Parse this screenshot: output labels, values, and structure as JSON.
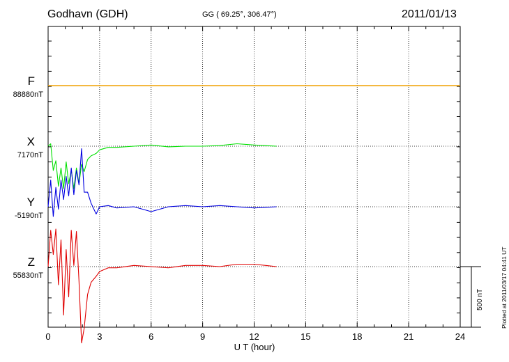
{
  "header": {
    "station": "Godhavn (GDH)",
    "coords": "GG ( 69.25°, 306.47°)",
    "date": "2011/01/13"
  },
  "plotted_note": "Plotted at 2011/03/17 04:41 UT",
  "scale_label": "500 nT",
  "colors": {
    "F": "#f0a000",
    "X": "#00e000",
    "Y": "#0000e0",
    "Z": "#e00000"
  },
  "chart_data": {
    "type": "line",
    "title": "Godhavn (GDH)",
    "xlabel": "U T (hour)",
    "xlim": [
      0,
      24
    ],
    "x_ticks": [
      0,
      3,
      6,
      9,
      12,
      15,
      18,
      21,
      24
    ],
    "x_tick_labels": [
      "0",
      "3",
      "6",
      "9",
      "12",
      "15",
      "18",
      "21",
      "24"
    ],
    "scale_bar_nT": 500,
    "series": [
      {
        "name": "F",
        "base_label": "88880nT",
        "color": "#f0a000",
        "x": [
          0,
          24
        ],
        "y": [
          0,
          0
        ]
      },
      {
        "name": "X",
        "base_label": "7170nT",
        "color": "#00e000",
        "x": [
          0,
          0.15,
          0.3,
          0.45,
          0.6,
          0.75,
          0.9,
          1.05,
          1.2,
          1.35,
          1.5,
          1.65,
          1.8,
          1.95,
          2.1,
          2.3,
          2.5,
          2.8,
          3.0,
          3.5,
          4,
          5,
          6,
          7,
          8,
          9,
          10,
          11,
          12,
          13.3
        ],
        "y": [
          0,
          20,
          -200,
          -120,
          -330,
          -180,
          -350,
          -130,
          -310,
          -200,
          -350,
          -180,
          -310,
          -150,
          -210,
          -110,
          -80,
          -60,
          -30,
          -10,
          -10,
          0,
          10,
          -5,
          0,
          0,
          5,
          20,
          10,
          0
        ]
      },
      {
        "name": "Y",
        "base_label": "-5190nT",
        "color": "#0000e0",
        "x": [
          0,
          0.15,
          0.3,
          0.45,
          0.6,
          0.75,
          0.9,
          1.05,
          1.2,
          1.35,
          1.5,
          1.65,
          1.8,
          1.95,
          2.1,
          2.3,
          2.5,
          2.8,
          3.0,
          3.5,
          4,
          5,
          6,
          7,
          8,
          9,
          10,
          11,
          12,
          13.3
        ],
        "y": [
          0,
          220,
          -80,
          160,
          -20,
          220,
          60,
          250,
          90,
          320,
          100,
          300,
          180,
          480,
          120,
          120,
          30,
          -60,
          0,
          10,
          -10,
          0,
          -40,
          0,
          10,
          0,
          10,
          0,
          -10,
          0
        ]
      },
      {
        "name": "Z",
        "base_label": "55830nT",
        "color": "#e00000",
        "x": [
          0,
          0.15,
          0.3,
          0.45,
          0.6,
          0.75,
          0.9,
          1.05,
          1.2,
          1.35,
          1.5,
          1.65,
          1.8,
          1.95,
          2.1,
          2.3,
          2.5,
          2.8,
          3.0,
          3.5,
          4,
          5,
          6,
          7,
          8,
          9,
          10,
          11,
          12,
          13.3
        ],
        "y": [
          0,
          300,
          100,
          310,
          -150,
          220,
          -400,
          140,
          -250,
          300,
          10,
          290,
          -120,
          -630,
          -510,
          -230,
          -130,
          -80,
          -40,
          -10,
          -10,
          10,
          0,
          -10,
          10,
          10,
          0,
          20,
          20,
          0
        ]
      }
    ]
  }
}
